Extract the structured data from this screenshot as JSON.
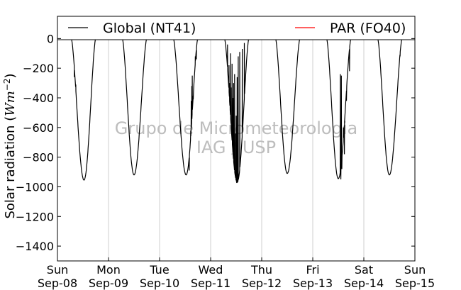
{
  "chart_data": {
    "type": "line",
    "title": "",
    "xlabel": "",
    "ylabel": "Solar radiation (Wm−2)",
    "ylabel_parts": [
      "Solar radiation ",
      "(",
      "Wm",
      "−2",
      ")"
    ],
    "xlim": [
      0,
      7
    ],
    "ylim": [
      -1500,
      150
    ],
    "yticks": [
      0,
      -200,
      -400,
      -600,
      -800,
      -1000,
      -1200,
      -1400
    ],
    "ytick_labels": [
      "0",
      "−200",
      "−400",
      "−600",
      "−800",
      "−1000",
      "−1200",
      "−1400"
    ],
    "xticks": [
      0,
      1,
      2,
      3,
      4,
      5,
      6,
      7
    ],
    "xtick_labels": [
      [
        "Sun",
        "Sep-08"
      ],
      [
        "Mon",
        "Sep-09"
      ],
      [
        "Tue",
        "Sep-10"
      ],
      [
        "Wed",
        "Sep-11"
      ],
      [
        "Thu",
        "Sep-12"
      ],
      [
        "Fri",
        "Sep-13"
      ],
      [
        "Sat",
        "Sep-14"
      ],
      [
        "Sun",
        "Sep-15"
      ]
    ],
    "x_units": "days since Sun Sep-08 00:00",
    "grid": "vertical",
    "legend_position": "top",
    "watermark": [
      "Grupo de Micrometeorologia",
      "IAG / USP"
    ],
    "series": [
      {
        "name": "Global (NT41)",
        "color": "#000000",
        "days": [
          {
            "start": 0.27,
            "end": 0.75,
            "peak_time": 0.52,
            "peak": -955,
            "spikes": [
              [
                0.33,
                -260
              ],
              [
                0.36,
                -310
              ]
            ]
          },
          {
            "start": 1.27,
            "end": 1.75,
            "peak_time": 1.5,
            "peak": -920,
            "spikes": []
          },
          {
            "start": 2.27,
            "end": 2.75,
            "peak_time": 2.52,
            "peak": -920,
            "spikes": [
              [
                2.58,
                -890
              ],
              [
                2.61,
                -620
              ],
              [
                2.62,
                -420
              ],
              [
                2.63,
                -320
              ],
              [
                2.64,
                -250
              ],
              [
                2.66,
                -410
              ],
              [
                2.7,
                -120
              ],
              [
                2.72,
                -140
              ]
            ]
          },
          {
            "start": 3.27,
            "end": 3.75,
            "peak_time": 3.52,
            "peak": -970,
            "spikes": [
              [
                3.33,
                -40
              ],
              [
                3.36,
                -180
              ],
              [
                3.37,
                -300
              ],
              [
                3.38,
                -420
              ],
              [
                3.39,
                -100
              ],
              [
                3.4,
                -330
              ],
              [
                3.42,
                -170
              ],
              [
                3.44,
                -400
              ],
              [
                3.45,
                -300
              ],
              [
                3.47,
                -240
              ],
              [
                3.49,
                -640
              ],
              [
                3.5,
                -520
              ],
              [
                3.51,
                -970
              ],
              [
                3.52,
                -260
              ],
              [
                3.54,
                -120
              ],
              [
                3.57,
                -90
              ],
              [
                3.62,
                -70
              ],
              [
                3.66,
                -30
              ]
            ]
          },
          {
            "start": 4.27,
            "end": 4.75,
            "peak_time": 4.5,
            "peak": -910,
            "spikes": []
          },
          {
            "start": 5.27,
            "end": 5.75,
            "peak_time": 5.5,
            "peak": -945,
            "spikes": [
              [
                5.54,
                -240
              ],
              [
                5.55,
                -950
              ],
              [
                5.56,
                -250
              ],
              [
                5.57,
                -880
              ],
              [
                5.6,
                -600
              ],
              [
                5.62,
                -780
              ],
              [
                5.66,
                -420
              ],
              [
                5.7,
                -140
              ],
              [
                5.72,
                -220
              ]
            ]
          },
          {
            "start": 6.27,
            "end": 6.75,
            "peak_time": 6.5,
            "peak": -920,
            "spikes": [
              [
                6.71,
                -120
              ]
            ]
          }
        ]
      },
      {
        "name": "PAR (FO40)",
        "color": "#ff0000",
        "days": []
      }
    ]
  }
}
